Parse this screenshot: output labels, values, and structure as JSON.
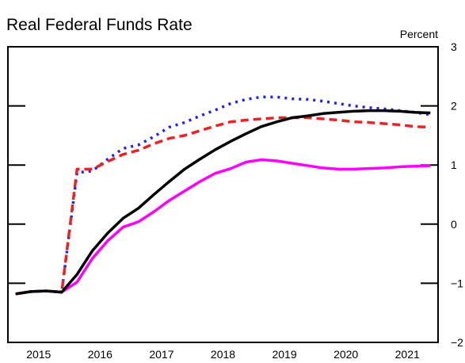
{
  "chart_data": {
    "type": "line",
    "title": "Real Federal Funds Rate",
    "y_label": "Percent",
    "x": [
      2015.125,
      2015.375,
      2015.625,
      2015.875,
      2016.125,
      2016.375,
      2016.625,
      2016.875,
      2017.125,
      2017.375,
      2017.625,
      2017.875,
      2018.125,
      2018.375,
      2018.625,
      2018.875,
      2019.125,
      2019.375,
      2019.625,
      2019.875,
      2020.125,
      2020.375,
      2020.625,
      2020.875,
      2021.125,
      2021.375,
      2021.625,
      2021.875
    ],
    "series": [
      {
        "color": "#1f1fff",
        "dash": "dotted",
        "values": [
          -1.18,
          -1.14,
          -1.13,
          -1.15,
          0.87,
          0.9,
          1.1,
          1.28,
          1.34,
          1.48,
          1.64,
          1.72,
          1.83,
          1.93,
          2.04,
          2.11,
          2.15,
          2.15,
          2.12,
          2.11,
          2.08,
          2.04,
          2.0,
          1.97,
          1.95,
          1.92,
          1.89,
          1.85
        ]
      },
      {
        "color": "#ee2222",
        "dash": "dashed",
        "values": [
          -1.18,
          -1.14,
          -1.13,
          -1.15,
          0.93,
          0.93,
          1.06,
          1.18,
          1.25,
          1.36,
          1.45,
          1.5,
          1.58,
          1.66,
          1.73,
          1.76,
          1.78,
          1.8,
          1.8,
          1.8,
          1.78,
          1.76,
          1.73,
          1.72,
          1.7,
          1.68,
          1.65,
          1.64
        ]
      },
      {
        "color": "#ff00ff",
        "dash": "solid",
        "values": [
          -1.18,
          -1.14,
          -1.13,
          -1.15,
          -0.98,
          -0.58,
          -0.28,
          -0.05,
          0.04,
          0.21,
          0.4,
          0.56,
          0.72,
          0.86,
          0.94,
          1.05,
          1.09,
          1.07,
          1.03,
          0.99,
          0.95,
          0.93,
          0.93,
          0.94,
          0.95,
          0.97,
          0.98,
          0.99
        ]
      },
      {
        "color": "#000000",
        "dash": "solid",
        "values": [
          -1.18,
          -1.14,
          -1.13,
          -1.15,
          -0.85,
          -0.45,
          -0.15,
          0.1,
          0.27,
          0.5,
          0.72,
          0.93,
          1.1,
          1.26,
          1.4,
          1.53,
          1.65,
          1.73,
          1.8,
          1.83,
          1.87,
          1.89,
          1.91,
          1.92,
          1.92,
          1.91,
          1.89,
          1.88
        ]
      }
    ],
    "xlim": [
      2015,
      2022
    ],
    "xticks": [
      {
        "value": 2015.5,
        "label": "2015"
      },
      {
        "value": 2016.5,
        "label": "2016"
      },
      {
        "value": 2017.5,
        "label": "2017"
      },
      {
        "value": 2018.5,
        "label": "2018"
      },
      {
        "value": 2019.5,
        "label": "2019"
      },
      {
        "value": 2020.5,
        "label": "2020"
      },
      {
        "value": 2021.5,
        "label": "2021"
      }
    ],
    "ylim": [
      -2,
      3
    ],
    "yticks": [
      {
        "value": -2,
        "label": "−2"
      },
      {
        "value": -1,
        "label": "−1"
      },
      0,
      1,
      2,
      3
    ],
    "grid": false
  }
}
